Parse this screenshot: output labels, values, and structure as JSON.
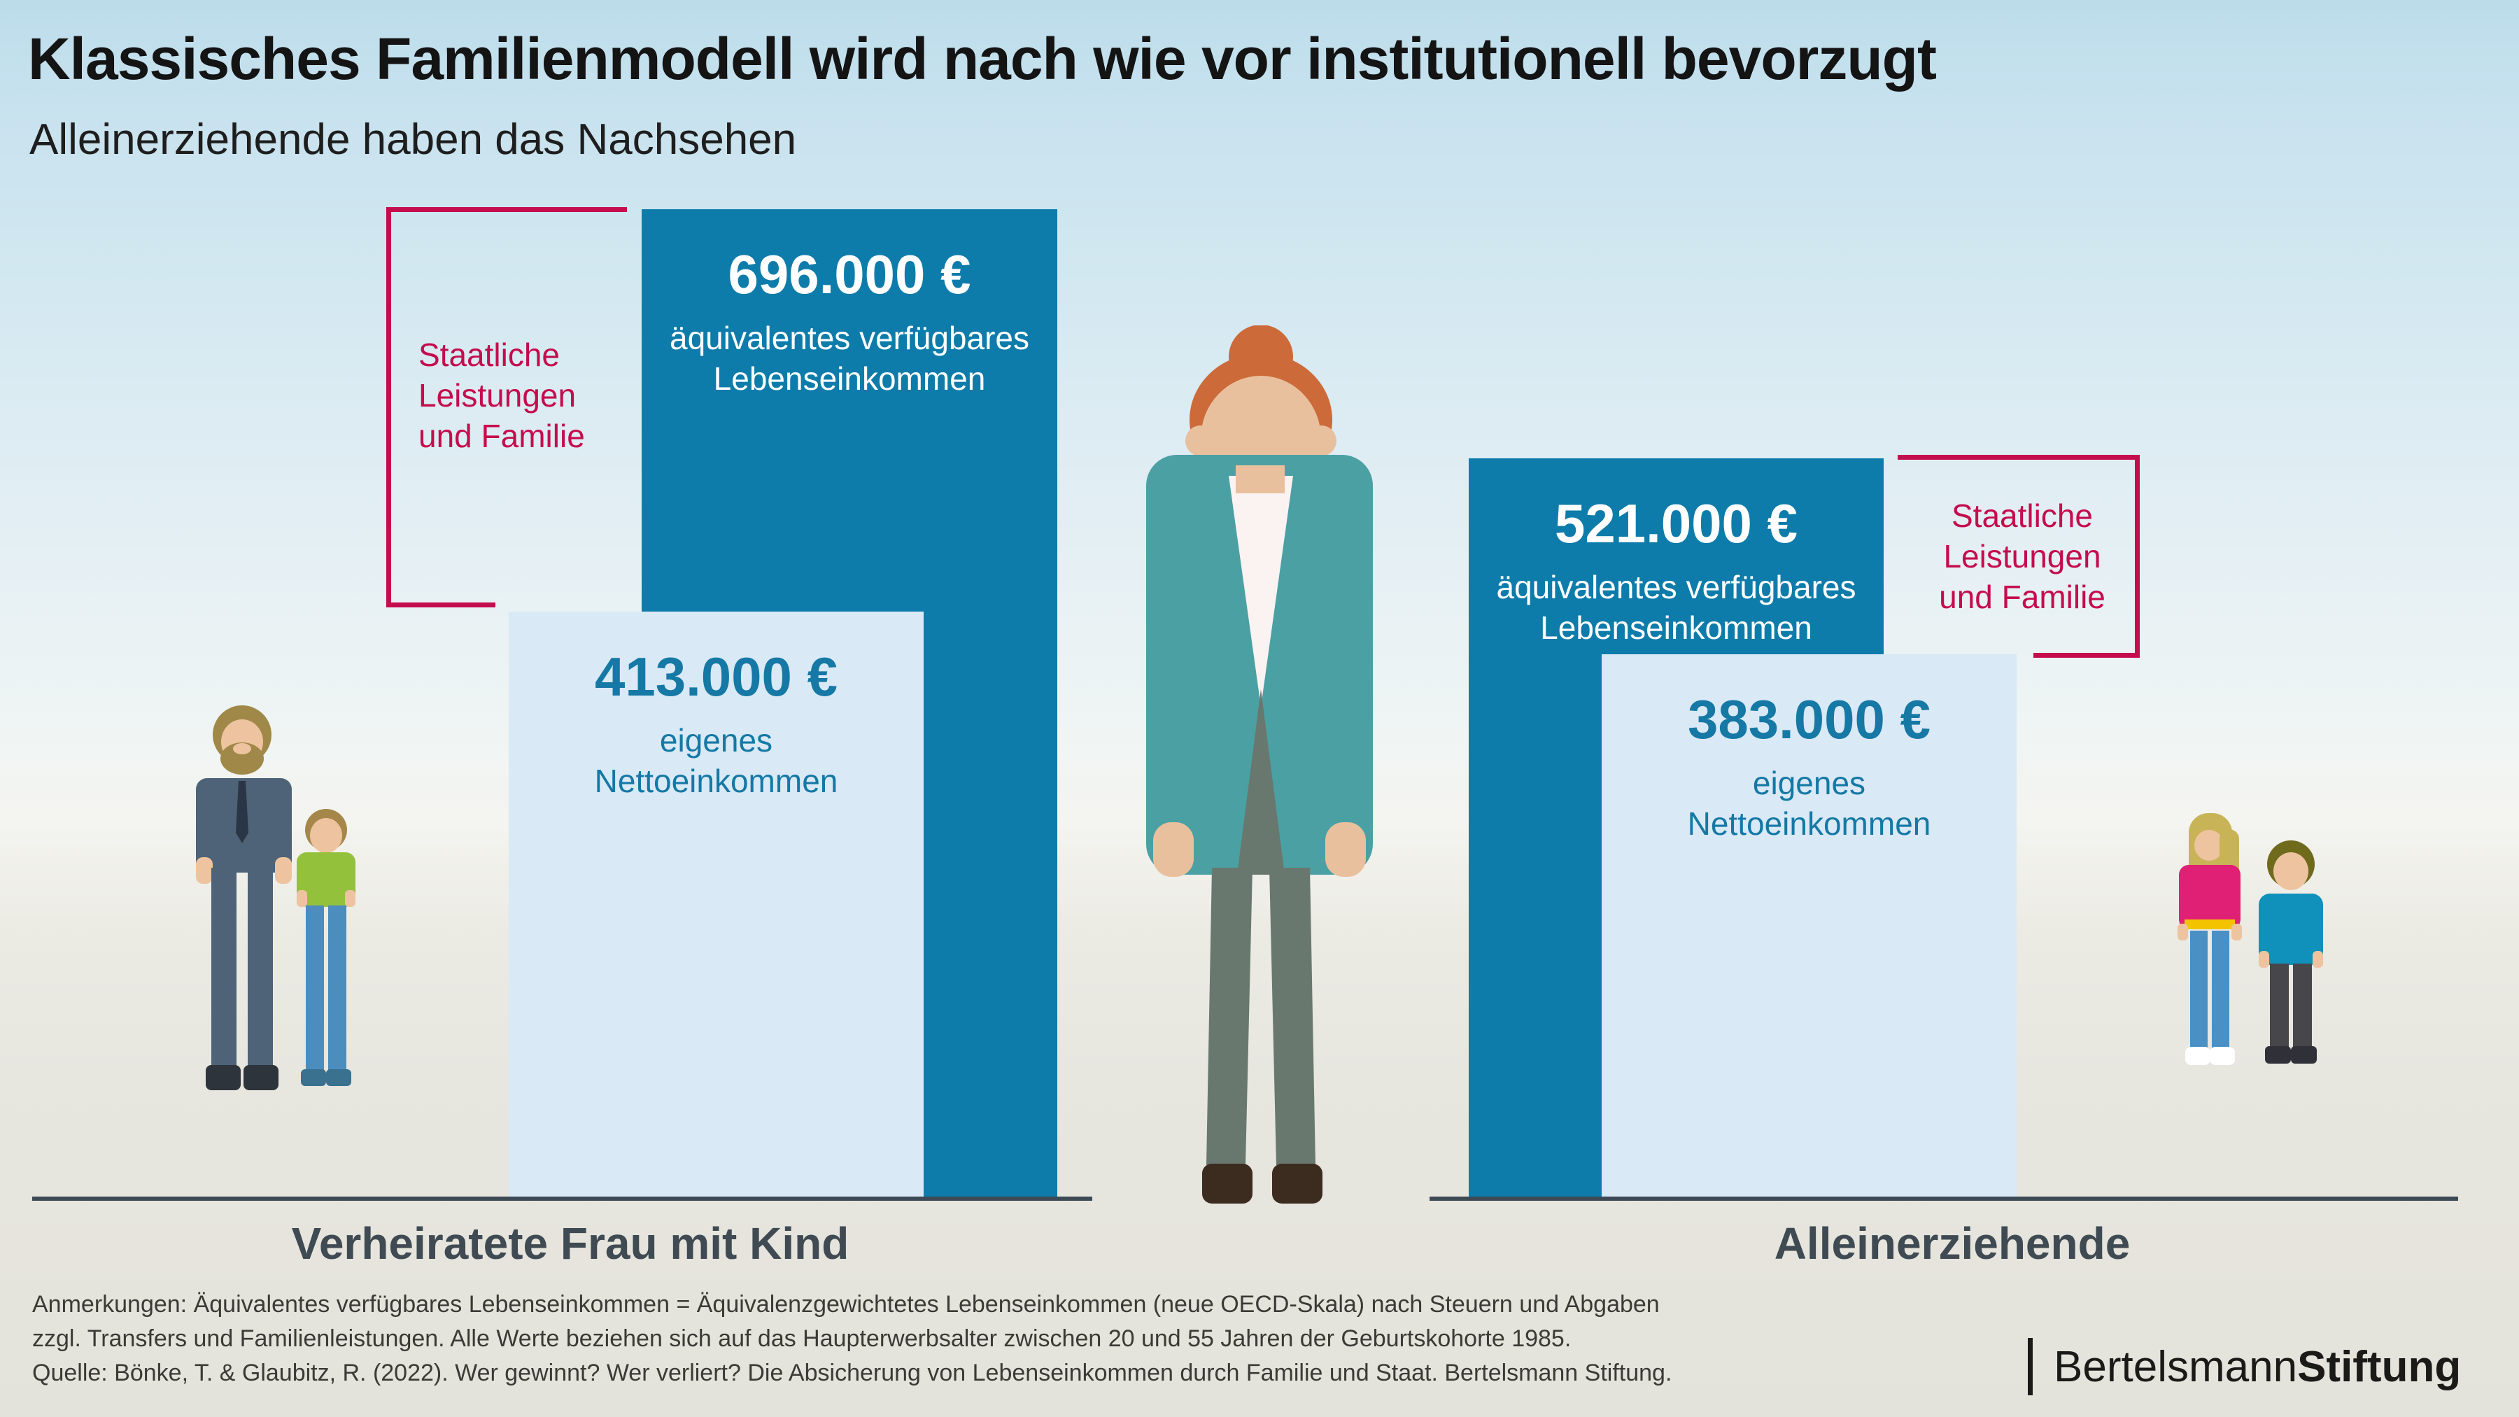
{
  "title": "Klassisches Familienmodell wird nach wie vor institutionell bevorzugt",
  "subtitle": "Alleinerziehende haben das Nachsehen",
  "chart_data": {
    "type": "bar",
    "unit": "€",
    "ylim": [
      0,
      696000
    ],
    "legend_position": "none",
    "groups": [
      {
        "category": "Verheiratete Frau mit Kind",
        "bracket_label": "Staatliche\nLeistungen\nund Familie",
        "bars": [
          {
            "name": "äquivalentes verfügbares\nLebenseinkommen",
            "value": 696000,
            "value_label": "696.000 €",
            "style": "dark"
          },
          {
            "name": "eigenes\nNettoeinkommen",
            "value": 413000,
            "value_label": "413.000 €",
            "style": "light"
          }
        ]
      },
      {
        "category": "Alleinerziehende",
        "bracket_label": "Staatliche\nLeistungen\nund Familie",
        "bars": [
          {
            "name": "äquivalentes verfügbares\nLebenseinkommen",
            "value": 521000,
            "value_label": "521.000 €",
            "style": "dark"
          },
          {
            "name": "eigenes\nNettoeinkommen",
            "value": 383000,
            "value_label": "383.000 €",
            "style": "light"
          }
        ]
      }
    ]
  },
  "notes": [
    "Anmerkungen: Äquivalentes verfügbares Lebenseinkommen = Äquivalenzgewichtetes Lebenseinkommen (neue OECD-Skala) nach Steuern und Abgaben",
    "zzgl. Transfers und Familienleistungen. Alle Werte beziehen sich auf das Haupterwerbsalter zwischen 20 und 55 Jahren der Geburtskohorte 1985.",
    "Quelle: Bönke, T. & Glaubitz, R. (2022). Wer gewinnt? Wer verliert? Die Absicherung von Lebenseinkommen durch Familie und Staat. Bertelsmann Stiftung."
  ],
  "logo": {
    "brand_regular": "Bertelsmann",
    "brand_bold": "Stiftung"
  },
  "icons": {
    "left_figures": "father-with-child",
    "center_figure": "woman-with-bun",
    "right_figures": "girl-and-boy"
  },
  "colors": {
    "bar_dark": "#0e7caa",
    "bar_light": "#d9e9f6",
    "value_on_dark": "#ffffff",
    "value_on_light": "#1578a5",
    "accent_pink": "#c50c4d",
    "axis_line": "#3d4a55",
    "title_text": "#141414",
    "axis_label_text": "#3f4a52",
    "footnote_text": "#3a3a36",
    "logo_text": "#1a1a18"
  }
}
